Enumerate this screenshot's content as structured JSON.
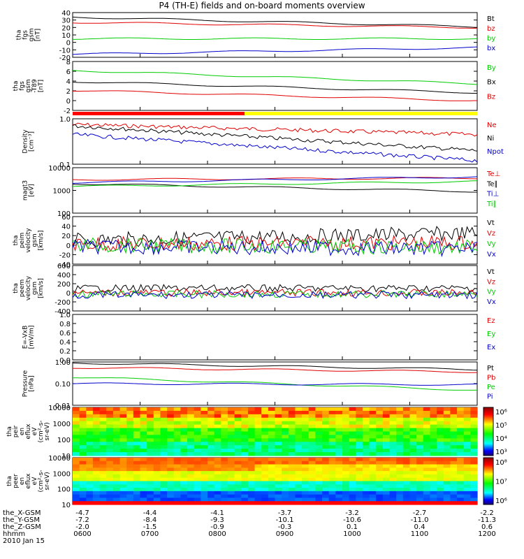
{
  "title": "P4 (TH-E) fields and on-board moments overview",
  "date_label": "2010 Jan 15",
  "ephemeris": {
    "rows": [
      {
        "label": "the_X-GSM",
        "values": [
          "-4.7",
          "-4.4",
          "-4.1",
          "-3.7",
          "-3.2",
          "-2.7",
          "-2.2"
        ]
      },
      {
        "label": "the_Y-GSM",
        "values": [
          "-7.2",
          "-8.4",
          "-9.3",
          "-10.1",
          "-10.6",
          "-11.0",
          "-11.3"
        ]
      },
      {
        "label": "the_Z-GSM",
        "values": [
          "-2.0",
          "-1.5",
          "-0.9",
          "-0.3",
          "0.1",
          "0.4",
          "0.6"
        ]
      },
      {
        "label": "hhmm",
        "values": [
          "0600",
          "0700",
          "0800",
          "0900",
          "1000",
          "1100",
          "1200"
        ]
      }
    ]
  },
  "colors": {
    "black": "#000000",
    "red": "#e00000",
    "green": "#00cc00",
    "blue": "#0000cc",
    "bar_red": "#ff0000",
    "bar_yellow": "#ffff00"
  },
  "colorbars": [
    {
      "panel": 10,
      "labels": [
        "10⁶",
        "10⁵",
        "10⁴",
        "10³"
      ]
    },
    {
      "panel": 11,
      "labels": [
        "10⁸",
        "10⁷",
        "10⁶"
      ]
    }
  ],
  "chart_data": [
    {
      "type": "line",
      "ylabel": "tha\nfgs\ngsm\n[nT]",
      "ylim": [
        -20,
        40
      ],
      "yticks": [
        "40",
        "30",
        "20",
        "10",
        "0",
        "-10",
        "-20"
      ],
      "series": [
        {
          "name": "Bt",
          "color": "#000000",
          "start": 34,
          "end": 21
        },
        {
          "name": "bz",
          "color": "#e00000",
          "start": 27,
          "end": 20
        },
        {
          "name": "by",
          "color": "#00cc00",
          "start": 5,
          "end": 5
        },
        {
          "name": "bx",
          "color": "#0000cc",
          "start": -16,
          "end": -7
        }
      ]
    },
    {
      "type": "line",
      "ylabel": "tha\nfgs\ngsm\n-T89\n[nT]",
      "ylim": [
        -3,
        8
      ],
      "yticks": [
        "8",
        "6",
        "4",
        "2",
        "0",
        "-2"
      ],
      "series": [
        {
          "name": "By",
          "color": "#00cc00",
          "start": 6,
          "end": 3
        },
        {
          "name": "Bx",
          "color": "#000000",
          "start": 3.5,
          "end": 1
        },
        {
          "name": "Bz",
          "color": "#e00000",
          "start": 1.5,
          "end": -0.8
        }
      ]
    },
    {
      "type": "bar",
      "name": "spacecraft mode",
      "segments": [
        {
          "from": "0600",
          "to": "0833",
          "color": "#ff0000"
        },
        {
          "from": "0833",
          "to": "1200",
          "color": "#ffff00"
        }
      ]
    },
    {
      "type": "line",
      "ylabel": "Density\n[cm⁻³]",
      "ylim": [
        0.1,
        1.0
      ],
      "yscale": "log",
      "yticks": [
        "1.0",
        "0.1"
      ],
      "series": [
        {
          "name": "Ne",
          "color": "#e00000",
          "start": 0.75,
          "end": 0.45
        },
        {
          "name": "Ni",
          "color": "#000000",
          "start": 0.7,
          "end": 0.2
        },
        {
          "name": "Npot",
          "color": "#0000cc",
          "start": 0.45,
          "end": 0.12
        }
      ]
    },
    {
      "type": "line",
      "ylabel": "magt3\n[eV]",
      "ylim": [
        100,
        10000
      ],
      "yscale": "log",
      "yticks": [
        "10000",
        "1000",
        "100"
      ],
      "series": [
        {
          "name": "Te⊥",
          "color": "#e00000",
          "start": 3000,
          "end": 3500
        },
        {
          "name": "Te∥",
          "color": "#000000",
          "start": 2000,
          "end": 900
        },
        {
          "name": "Ti⊥",
          "color": "#0000cc",
          "start": 2200,
          "end": 4000
        },
        {
          "name": "Ti∥",
          "color": "#00cc00",
          "start": 1500,
          "end": 2500
        }
      ]
    },
    {
      "type": "line",
      "ylabel": "tha\npeim\nvelocity\ngsm\n[km/s]",
      "ylim": [
        -40,
        60
      ],
      "yticks": [
        "60",
        "40",
        "20",
        "0",
        "-20",
        "-40"
      ],
      "series": [
        {
          "name": "Vt",
          "color": "#000000",
          "start": 10,
          "end": 25
        },
        {
          "name": "Vz",
          "color": "#e00000",
          "start": 2,
          "end": 5
        },
        {
          "name": "Vy",
          "color": "#00cc00",
          "start": 0,
          "end": -5
        },
        {
          "name": "Vx",
          "color": "#0000cc",
          "start": -3,
          "end": -8
        }
      ]
    },
    {
      "type": "line",
      "ylabel": "tha\npeem\nvelocity\ngsm\n[km/s]",
      "ylim": [
        -400,
        600
      ],
      "yticks": [
        "600",
        "400",
        "200",
        "0",
        "-200",
        "-400"
      ],
      "series": [
        {
          "name": "Vt",
          "color": "#000000",
          "start": 100,
          "end": 100
        },
        {
          "name": "Vz",
          "color": "#e00000",
          "start": 0,
          "end": 0
        },
        {
          "name": "Vy",
          "color": "#00cc00",
          "start": -30,
          "end": -30
        },
        {
          "name": "Vx",
          "color": "#0000cc",
          "start": -50,
          "end": -50
        }
      ]
    },
    {
      "type": "line",
      "ylabel": "E=-VxB\n[mV/m]",
      "ylim": [
        0.0,
        1.0
      ],
      "yticks": [
        "1.0",
        "0.8",
        "0.6",
        "0.4",
        "0.2",
        "0.0"
      ],
      "series": [
        {
          "name": "Ez",
          "color": "#e00000"
        },
        {
          "name": "Ey",
          "color": "#00cc00"
        },
        {
          "name": "Ex",
          "color": "#0000cc"
        }
      ]
    },
    {
      "type": "line",
      "ylabel": "Pressure\n[nPa]",
      "ylim": [
        0.01,
        1.0
      ],
      "yscale": "log",
      "yticks": [
        "1.00",
        "0.10",
        "0.01"
      ],
      "series": [
        {
          "name": "Pt",
          "color": "#000000",
          "start": 0.9,
          "end": 0.45
        },
        {
          "name": "Pb",
          "color": "#e00000",
          "start": 0.55,
          "end": 0.35
        },
        {
          "name": "Pe",
          "color": "#00cc00",
          "start": 0.2,
          "end": 0.05
        },
        {
          "name": "Pi",
          "color": "#0000cc",
          "start": 0.1,
          "end": 0.09
        }
      ]
    },
    {
      "type": "heatmap",
      "ylabel": "tha\npeir\nen\neflux\neV\n(cm²-s-\nsr-eV)",
      "ylim": [
        10,
        10000
      ],
      "yscale": "log",
      "yticks": [
        "10000",
        "1000",
        "100",
        "10"
      ]
    },
    {
      "type": "heatmap",
      "ylabel": "tha\npeer\nen\neflux\neV\n(cm²-s-\nsr-eV)",
      "ylim": [
        10,
        10000
      ],
      "yscale": "log",
      "yticks": [
        "10000",
        "1000",
        "100",
        "10"
      ]
    }
  ]
}
